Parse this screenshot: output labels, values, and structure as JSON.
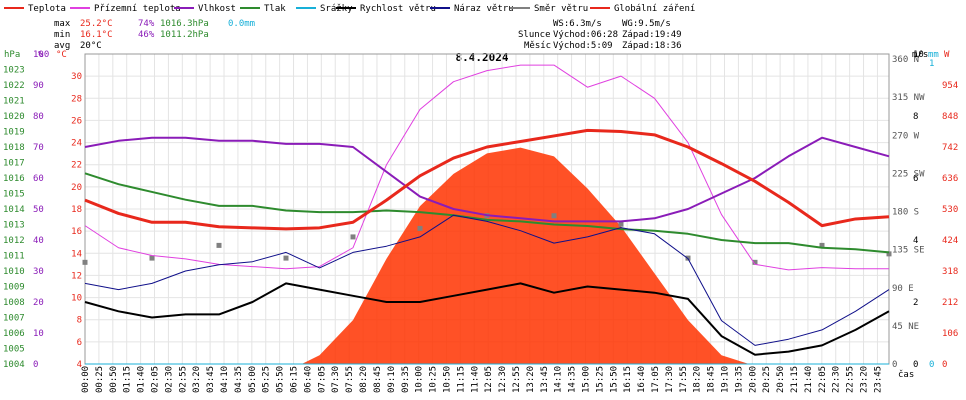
{
  "title": "8.4.2024",
  "legend": [
    {
      "label": "Teplota",
      "color": "#e8281c"
    },
    {
      "label": "Přízemní teplota",
      "color": "#e040e0"
    },
    {
      "label": "Vlhkost",
      "color": "#8a1cb8"
    },
    {
      "label": "Tlak",
      "color": "#2e8b2e"
    },
    {
      "label": "Srážky",
      "color": "#18b0d8"
    },
    {
      "label": "Rychlost větru",
      "color": "#000000"
    },
    {
      "label": "Náraz větru",
      "color": "#10108a"
    },
    {
      "label": "Směr větru",
      "color": "#808080"
    },
    {
      "label": "Globální záření",
      "color": "#e8281c"
    }
  ],
  "stats": {
    "max": {
      "label": "max",
      "temp": "25.2°C",
      "hum": "74%",
      "press": "1016.3hPa",
      "rain": "0.0mm"
    },
    "min": {
      "label": "min",
      "temp": "16.1°C",
      "hum": "46%",
      "press": "1011.2hPa"
    },
    "avg": {
      "label": "avg",
      "temp": "20°C"
    }
  },
  "wind_info": {
    "ws": "WS:6.3m/s",
    "wg": "WG:9.5m/s"
  },
  "sun": {
    "label": "Slunce",
    "rise": "Východ:06:28",
    "set": "Západ:19:49"
  },
  "moon": {
    "label": "Měsíc",
    "rise": "Východ:5:09",
    "set": "Západ:18:36"
  },
  "axis_units": {
    "hpa": "hPa",
    "pct": "%",
    "degc": "°C",
    "ms": "m/s",
    "mm": "mm",
    "w": "W",
    "cas": "čas"
  },
  "colors": {
    "temp": "#e8281c",
    "dew": "#e040e0",
    "hum": "#8a1cb8",
    "press": "#2e8b2e",
    "rain": "#18b0d8",
    "ws": "#000000",
    "wg": "#10108a",
    "dir": "#808080",
    "rad": "#ff3300"
  },
  "chart_data": {
    "type": "line",
    "x_ticks": [
      "00:00",
      "00:25",
      "00:50",
      "01:15",
      "01:40",
      "02:05",
      "02:30",
      "02:55",
      "03:20",
      "03:45",
      "04:10",
      "04:35",
      "05:00",
      "05:25",
      "05:50",
      "06:15",
      "06:40",
      "07:05",
      "07:30",
      "07:55",
      "08:20",
      "08:45",
      "09:10",
      "09:35",
      "10:00",
      "10:25",
      "10:50",
      "11:15",
      "11:40",
      "12:05",
      "12:30",
      "12:55",
      "13:20",
      "13:45",
      "14:10",
      "14:35",
      "15:00",
      "15:25",
      "15:50",
      "16:15",
      "16:40",
      "17:05",
      "17:30",
      "17:55",
      "18:20",
      "18:45",
      "19:10",
      "19:35",
      "20:00",
      "20:25",
      "20:50",
      "21:15",
      "21:40",
      "22:05",
      "22:30",
      "22:55",
      "23:20",
      "23:45"
    ],
    "y_axes": {
      "pressure_hpa": {
        "range": [
          1004,
          1024
        ],
        "ticks": [
          "1004",
          "1005",
          "1006",
          "1007",
          "1008",
          "1009",
          "1010",
          "1011",
          "1012",
          "1013",
          "1014",
          "1015",
          "1016",
          "1017",
          "1018",
          "1019",
          "1020",
          "1021",
          "1022",
          "1023"
        ]
      },
      "humidity_pct": {
        "range": [
          0,
          100
        ],
        "ticks": [
          "0",
          "10",
          "20",
          "30",
          "40",
          "50",
          "60",
          "70",
          "80",
          "90",
          "100"
        ]
      },
      "temp_c": {
        "range": [
          4,
          32
        ],
        "ticks": [
          "4",
          "6",
          "8",
          "10",
          "12",
          "14",
          "16",
          "18",
          "20",
          "22",
          "24",
          "26",
          "28",
          "30"
        ]
      },
      "wind_dir": {
        "ticks": [
          "0",
          "45 NE",
          "90 E",
          "135 SE",
          "180 S",
          "225 SW",
          "270 W",
          "315 NW",
          "360 N"
        ]
      },
      "wind_ms": {
        "range": [
          0,
          10
        ],
        "ticks": [
          "0",
          "2",
          "4",
          "6",
          "8",
          "10"
        ]
      },
      "rain_mm": {
        "range": [
          0,
          1
        ],
        "ticks": [
          "0",
          "1"
        ]
      },
      "radiation_w": {
        "range": [
          0,
          1060
        ],
        "ticks": [
          "0",
          "106",
          "212",
          "318",
          "424",
          "530",
          "636",
          "742",
          "848",
          "954"
        ]
      }
    },
    "series": [
      {
        "name": "Teplota",
        "unit": "°C",
        "x_hours": [
          0,
          1,
          2,
          3,
          4,
          5,
          6,
          7,
          8,
          9,
          10,
          11,
          12,
          13,
          14,
          15,
          16,
          17,
          18,
          19,
          20,
          21,
          22,
          23,
          24
        ],
        "values": [
          18.8,
          17.6,
          16.8,
          16.8,
          16.4,
          16.3,
          16.2,
          16.3,
          16.8,
          18.8,
          21.0,
          22.6,
          23.6,
          24.1,
          24.6,
          25.1,
          25.0,
          24.7,
          23.6,
          22.1,
          20.5,
          18.6,
          16.5,
          17.1,
          17.3
        ]
      },
      {
        "name": "Přízemní teplota",
        "unit": "°C",
        "x_hours": [
          0,
          1,
          2,
          3,
          4,
          5,
          6,
          7,
          8,
          9,
          10,
          11,
          12,
          13,
          14,
          15,
          16,
          17,
          18,
          19,
          20,
          21,
          22,
          23,
          24
        ],
        "values": [
          16.5,
          14.5,
          13.8,
          13.5,
          13.0,
          12.8,
          12.6,
          12.8,
          14.5,
          22.0,
          27.0,
          29.5,
          30.5,
          31.0,
          31.0,
          29.0,
          30.0,
          28.0,
          24.0,
          17.5,
          13.0,
          12.5,
          12.7,
          12.6,
          12.6
        ]
      },
      {
        "name": "Vlhkost",
        "unit": "%",
        "x_hours": [
          0,
          1,
          2,
          3,
          4,
          5,
          6,
          7,
          8,
          9,
          10,
          11,
          12,
          13,
          14,
          15,
          16,
          17,
          18,
          19,
          20,
          21,
          22,
          23,
          24
        ],
        "values": [
          70,
          72,
          73,
          73,
          72,
          72,
          71,
          71,
          70,
          62,
          54,
          50,
          48,
          47,
          46,
          46,
          46,
          47,
          50,
          55,
          60,
          67,
          73,
          70,
          67
        ]
      },
      {
        "name": "Tlak",
        "unit": "hPa",
        "x_hours": [
          0,
          1,
          2,
          3,
          4,
          5,
          6,
          7,
          8,
          9,
          10,
          11,
          12,
          13,
          14,
          15,
          16,
          17,
          18,
          19,
          20,
          21,
          22,
          23,
          24
        ],
        "values": [
          1016.3,
          1015.6,
          1015.1,
          1014.6,
          1014.2,
          1014.2,
          1013.9,
          1013.8,
          1013.8,
          1013.9,
          1013.8,
          1013.6,
          1013.3,
          1013.2,
          1013.0,
          1012.9,
          1012.7,
          1012.6,
          1012.4,
          1012.0,
          1011.8,
          1011.8,
          1011.5,
          1011.4,
          1011.2
        ]
      },
      {
        "name": "Srážky",
        "unit": "mm",
        "x_hours": [
          0,
          24
        ],
        "values": [
          0,
          0
        ]
      },
      {
        "name": "Rychlost větru",
        "unit": "m/s",
        "x_hours": [
          0,
          1,
          2,
          3,
          4,
          5,
          6,
          7,
          8,
          9,
          10,
          11,
          12,
          13,
          14,
          15,
          16,
          17,
          18,
          19,
          20,
          21,
          22,
          23,
          24
        ],
        "values": [
          2.0,
          1.7,
          1.5,
          1.6,
          1.6,
          2.0,
          2.6,
          2.4,
          2.2,
          2.0,
          2.0,
          2.2,
          2.4,
          2.6,
          2.3,
          2.5,
          2.4,
          2.3,
          2.1,
          0.9,
          0.3,
          0.4,
          0.6,
          1.1,
          1.7
        ]
      },
      {
        "name": "Náraz větru",
        "unit": "m/s",
        "x_hours": [
          0,
          1,
          2,
          3,
          4,
          5,
          6,
          7,
          8,
          9,
          10,
          11,
          12,
          13,
          14,
          15,
          16,
          17,
          18,
          19,
          20,
          21,
          22,
          23,
          24
        ],
        "values": [
          2.6,
          2.4,
          2.6,
          3.0,
          3.2,
          3.3,
          3.6,
          3.1,
          3.6,
          3.8,
          4.1,
          4.8,
          4.6,
          4.3,
          3.9,
          4.1,
          4.4,
          4.2,
          3.4,
          1.4,
          0.6,
          0.8,
          1.1,
          1.7,
          2.4
        ]
      },
      {
        "name": "Směr větru",
        "unit": "°",
        "x_hours": [
          0,
          2,
          4,
          6,
          8,
          10,
          12,
          14,
          16,
          18,
          20,
          22,
          24
        ],
        "values": [
          120,
          125,
          140,
          125,
          150,
          160,
          175,
          175,
          165,
          125,
          120,
          140,
          130
        ]
      },
      {
        "name": "Globální záření",
        "unit": "W",
        "x_hours": [
          6.47,
          7,
          8,
          9,
          10,
          11,
          12,
          13,
          14,
          15,
          16,
          17,
          18,
          19,
          19.82
        ],
        "values": [
          0,
          30,
          150,
          360,
          540,
          650,
          720,
          740,
          710,
          600,
          470,
          310,
          150,
          30,
          0
        ]
      }
    ],
    "xlabel": "čas",
    "grid": true
  }
}
